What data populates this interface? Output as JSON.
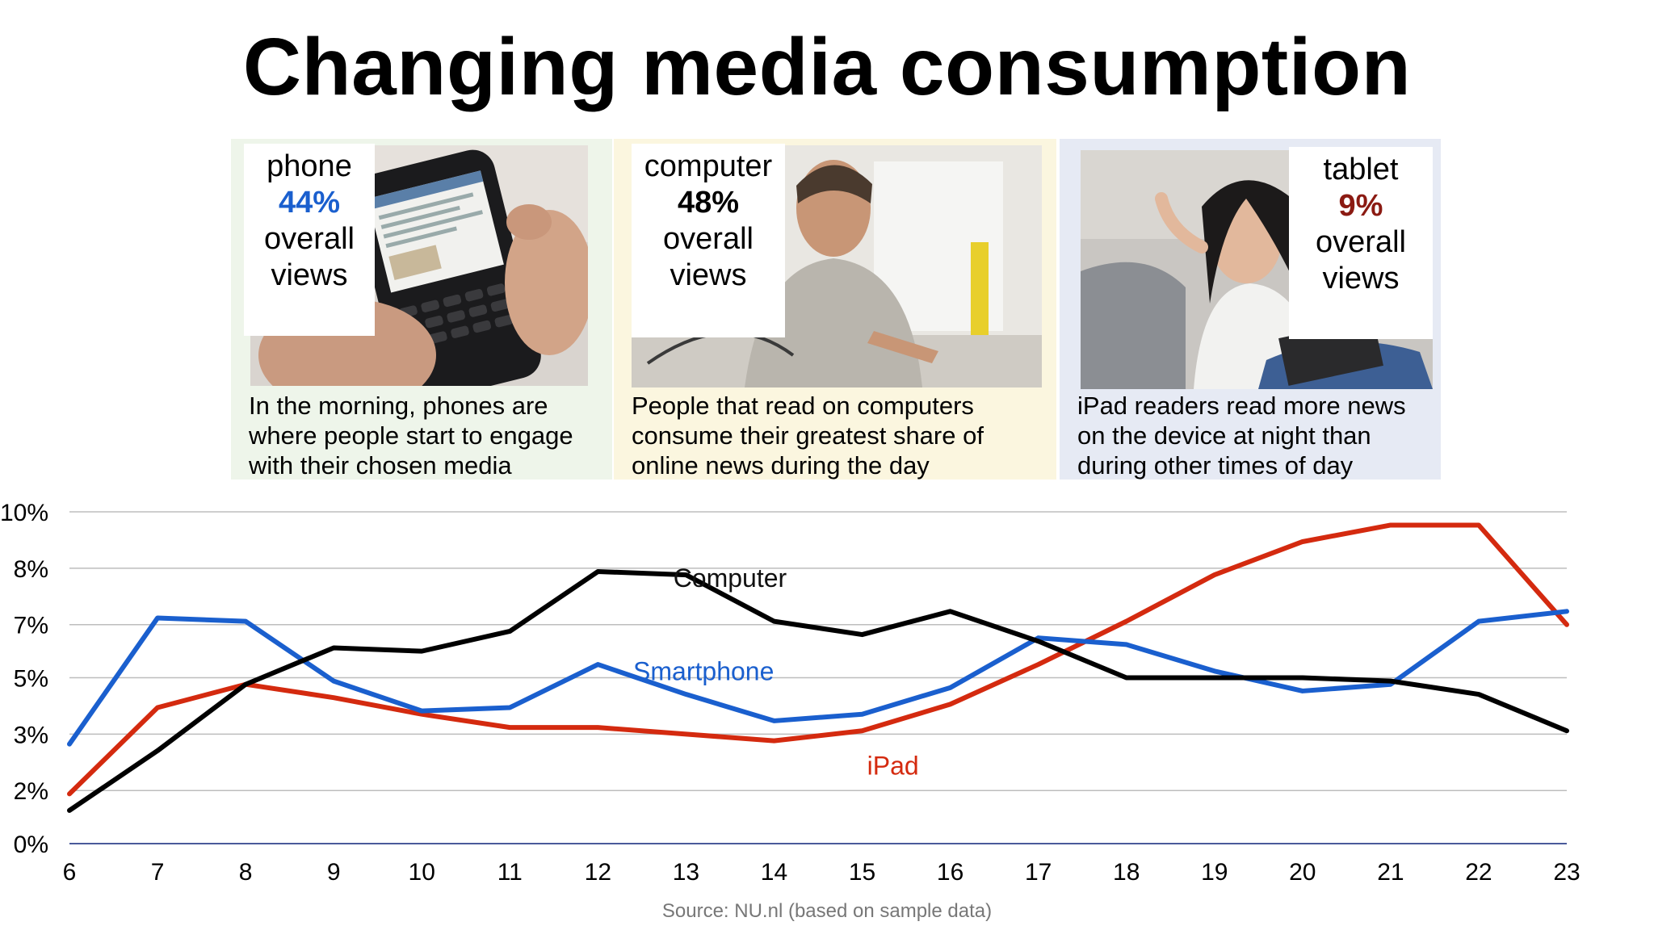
{
  "title": "Changing media consumption",
  "panels": [
    {
      "device": "phone",
      "percent": "44%",
      "label_line1": "overall",
      "label_line2": "views",
      "percent_color": "#1a5fce",
      "photo_icon": "smartphone-photo",
      "caption": [
        "In the morning, phones are",
        "where people start to engage",
        "with their chosen media"
      ]
    },
    {
      "device": "computer",
      "percent": "48%",
      "label_line1": "overall",
      "label_line2": "views",
      "percent_color": "#000000",
      "photo_icon": "computer-user-photo",
      "caption": [
        "People that read on computers",
        "consume their greatest share of",
        "online news during the day"
      ]
    },
    {
      "device": "tablet",
      "percent": "9%",
      "label_line1": "overall",
      "label_line2": "views",
      "percent_color": "#8b1a12",
      "photo_icon": "tablet-reader-photo",
      "caption": [
        "iPad readers read more news",
        "on the device at night than",
        "during other times of day"
      ]
    }
  ],
  "chart_data": {
    "type": "line",
    "x": [
      6,
      7,
      8,
      9,
      10,
      11,
      12,
      13,
      14,
      15,
      16,
      17,
      18,
      19,
      20,
      21,
      22,
      23
    ],
    "y_ticks": [
      0,
      1.6,
      3.3,
      5,
      6.6,
      8.3,
      10
    ],
    "y_tick_labels": [
      "0%",
      "2%",
      "3%",
      "5%",
      "7%",
      "8%",
      "10%"
    ],
    "ylim": [
      0,
      10
    ],
    "grid": true,
    "series": [
      {
        "name": "Computer",
        "color": "#000000",
        "values": [
          1.0,
          2.8,
          4.8,
          5.9,
          5.8,
          6.4,
          8.2,
          8.1,
          6.7,
          6.3,
          7.0,
          6.1,
          5.0,
          5.0,
          5.0,
          4.9,
          4.5,
          3.4
        ]
      },
      {
        "name": "Smartphone",
        "color": "#1a5fce",
        "values": [
          3.0,
          6.8,
          6.7,
          4.9,
          4.0,
          4.1,
          5.4,
          4.5,
          3.7,
          3.9,
          4.7,
          6.2,
          6.0,
          5.2,
          4.6,
          4.8,
          6.7,
          7.0
        ]
      },
      {
        "name": "iPad",
        "color": "#d42a0f",
        "values": [
          1.5,
          4.1,
          4.8,
          4.4,
          3.9,
          3.5,
          3.5,
          3.3,
          3.1,
          3.4,
          4.2,
          5.4,
          6.7,
          8.1,
          9.1,
          9.6,
          9.6,
          6.6
        ]
      }
    ]
  },
  "source": "Source: NU.nl (based on sample data)"
}
